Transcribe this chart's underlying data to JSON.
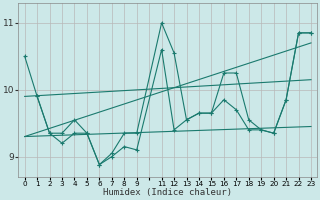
{
  "xlabel": "Humidex (Indice chaleur)",
  "bg_color": "#cce8e8",
  "line_color": "#1a7a6e",
  "grid_color": "#b8b8b8",
  "xmin": -0.5,
  "xmax": 23.5,
  "ymin": 8.7,
  "ymax": 11.3,
  "yticks": [
    9,
    10,
    11
  ],
  "x_positions": [
    0,
    1,
    2,
    3,
    4,
    5,
    6,
    7,
    8,
    9,
    10,
    11,
    12,
    13,
    14,
    15,
    16,
    17,
    18,
    19,
    20,
    21,
    22,
    23
  ],
  "xtick_labels": [
    "0",
    "1",
    "2",
    "3",
    "4",
    "5",
    "6",
    "7",
    "8",
    "9",
    "",
    "11",
    "12",
    "13",
    "14",
    "15",
    "16",
    "17",
    "18",
    "19",
    "20",
    "21",
    "22",
    "23"
  ],
  "line1_x": [
    0,
    1,
    2,
    3,
    4,
    5,
    6,
    7,
    8,
    9,
    11,
    12,
    13,
    14,
    15,
    16,
    17,
    18,
    19,
    20,
    21,
    22,
    23
  ],
  "line1_y": [
    10.5,
    9.9,
    9.35,
    9.35,
    9.55,
    9.35,
    8.88,
    9.05,
    9.35,
    9.35,
    11.0,
    10.55,
    9.55,
    9.65,
    9.65,
    10.25,
    10.25,
    9.55,
    9.4,
    9.35,
    9.85,
    10.85,
    10.85
  ],
  "line2_x": [
    1,
    2,
    3,
    4,
    5,
    6,
    7,
    8,
    9,
    11,
    12,
    13,
    14,
    15,
    16,
    17,
    18,
    19,
    20,
    21,
    22,
    23
  ],
  "line2_y": [
    9.9,
    9.35,
    9.2,
    9.35,
    9.35,
    8.88,
    9.0,
    9.15,
    9.1,
    10.6,
    9.4,
    9.55,
    9.65,
    9.65,
    9.85,
    9.7,
    9.4,
    9.4,
    9.35,
    9.85,
    10.85,
    10.85
  ],
  "trend1_x": [
    0,
    23
  ],
  "trend1_y": [
    9.9,
    10.15
  ],
  "trend2_x": [
    0,
    23
  ],
  "trend2_y": [
    9.3,
    9.45
  ],
  "trend3_x": [
    0,
    23
  ],
  "trend3_y": [
    9.3,
    10.7
  ]
}
